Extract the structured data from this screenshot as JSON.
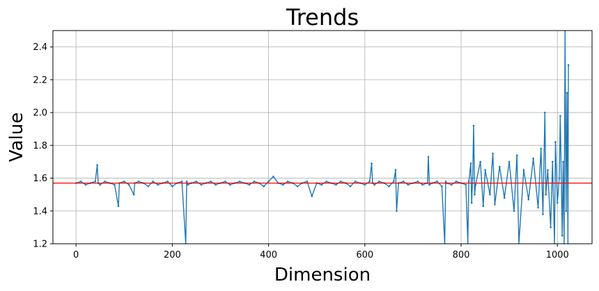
{
  "chart_data": {
    "type": "line",
    "title": "Trends",
    "xlabel": "Dimension",
    "ylabel": "Value",
    "xlim": [
      -48,
      1072
    ],
    "ylim": [
      1.2,
      2.5
    ],
    "xticks": [
      0,
      200,
      400,
      600,
      800,
      1000
    ],
    "yticks": [
      1.2,
      1.4,
      1.6,
      1.8,
      2.0,
      2.2,
      2.4
    ],
    "grid": true,
    "colors": {
      "series": "#1f77b4",
      "reference": "#ff0000",
      "grid": "#b0b0b0"
    },
    "reference_line": {
      "y": 1.57
    },
    "series": [
      {
        "x": [
          0,
          10,
          20,
          30,
          40,
          44,
          46,
          50,
          60,
          70,
          80,
          88,
          90,
          100,
          110,
          120,
          122,
          130,
          140,
          150,
          160,
          170,
          180,
          190,
          200,
          210,
          220,
          228,
          230,
          232,
          240,
          250,
          260,
          270,
          280,
          290,
          300,
          310,
          320,
          330,
          340,
          350,
          360,
          370,
          380,
          390,
          400,
          410,
          420,
          430,
          440,
          450,
          460,
          470,
          480,
          490,
          500,
          510,
          520,
          530,
          540,
          550,
          560,
          570,
          580,
          590,
          600,
          610,
          614,
          616,
          620,
          630,
          640,
          650,
          660,
          664,
          666,
          670,
          680,
          690,
          700,
          710,
          720,
          730,
          732,
          734,
          740,
          750,
          760,
          766,
          768,
          770,
          780,
          790,
          800,
          810,
          814,
          816,
          820,
          822,
          824,
          826,
          828,
          830,
          840,
          846,
          850,
          860,
          866,
          870,
          880,
          890,
          900,
          910,
          916,
          920,
          930,
          940,
          950,
          960,
          966,
          970,
          974,
          976,
          980,
          986,
          990,
          994,
          996,
          1000,
          1004,
          1006,
          1010,
          1012,
          1014,
          1016,
          1018,
          1020,
          1022,
          1023
        ],
        "y": [
          1.57,
          1.58,
          1.56,
          1.57,
          1.58,
          1.68,
          1.57,
          1.56,
          1.58,
          1.57,
          1.56,
          1.43,
          1.57,
          1.58,
          1.56,
          1.5,
          1.57,
          1.58,
          1.57,
          1.55,
          1.58,
          1.56,
          1.57,
          1.58,
          1.55,
          1.57,
          1.58,
          1.2,
          1.58,
          1.56,
          1.57,
          1.58,
          1.56,
          1.57,
          1.58,
          1.56,
          1.57,
          1.58,
          1.56,
          1.57,
          1.58,
          1.57,
          1.56,
          1.58,
          1.57,
          1.55,
          1.58,
          1.61,
          1.57,
          1.56,
          1.58,
          1.57,
          1.55,
          1.57,
          1.58,
          1.49,
          1.57,
          1.56,
          1.58,
          1.57,
          1.56,
          1.58,
          1.57,
          1.55,
          1.58,
          1.57,
          1.56,
          1.58,
          1.69,
          1.57,
          1.56,
          1.58,
          1.57,
          1.55,
          1.58,
          1.65,
          1.4,
          1.57,
          1.58,
          1.56,
          1.57,
          1.58,
          1.56,
          1.57,
          1.73,
          1.56,
          1.57,
          1.58,
          1.55,
          1.2,
          1.58,
          1.57,
          1.56,
          1.58,
          1.57,
          1.56,
          1.2,
          1.58,
          1.69,
          1.45,
          1.6,
          1.92,
          1.5,
          1.56,
          1.7,
          1.43,
          1.65,
          1.5,
          1.75,
          1.44,
          1.67,
          1.48,
          1.7,
          1.4,
          1.74,
          1.2,
          1.65,
          1.47,
          1.72,
          1.42,
          1.78,
          1.38,
          2.0,
          1.5,
          1.65,
          1.3,
          1.7,
          1.2,
          1.82,
          1.45,
          1.6,
          1.98,
          1.25,
          1.7,
          1.2,
          2.5,
          1.4,
          2.12,
          1.2,
          2.29
        ]
      }
    ]
  }
}
